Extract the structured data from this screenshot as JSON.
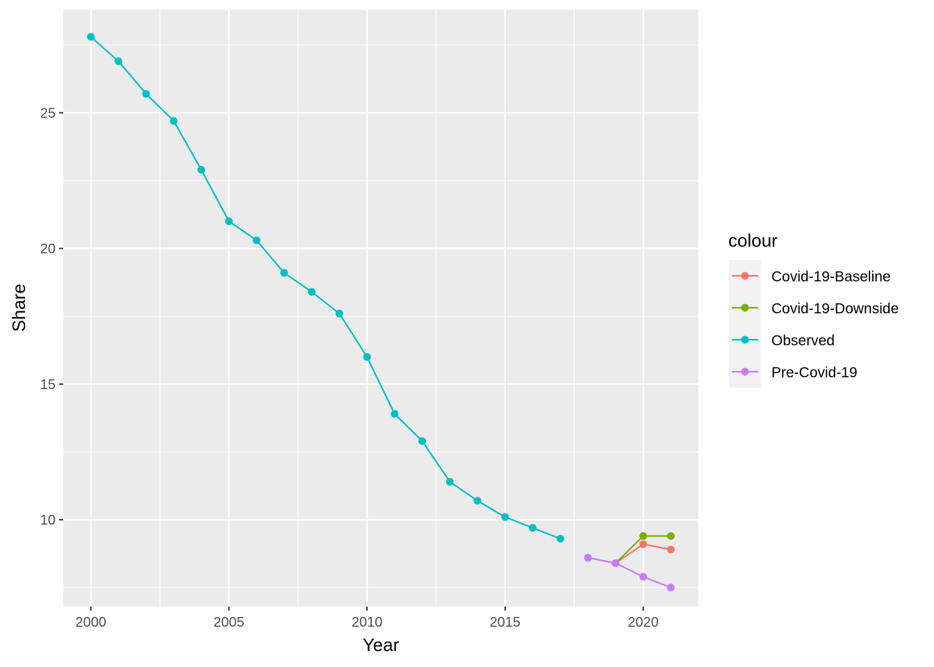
{
  "chart_data": {
    "type": "line",
    "title": "",
    "xlabel": "Year",
    "ylabel": "Share",
    "xlim": [
      1999,
      2022
    ],
    "ylim": [
      6.8,
      28.8
    ],
    "x_ticks": [
      2000,
      2005,
      2010,
      2015,
      2020
    ],
    "y_ticks": [
      10,
      15,
      20,
      25
    ],
    "grid": true,
    "legend": {
      "title": "colour",
      "position": "right"
    },
    "series": [
      {
        "name": "Covid-19-Baseline",
        "color": "#F8766D",
        "x": [
          2018,
          2019,
          2020,
          2021
        ],
        "y": [
          8.6,
          8.4,
          9.1,
          8.9
        ]
      },
      {
        "name": "Covid-19-Downside",
        "color": "#7CAE00",
        "x": [
          2018,
          2019,
          2020,
          2021
        ],
        "y": [
          8.6,
          8.4,
          9.4,
          9.4
        ]
      },
      {
        "name": "Observed",
        "color": "#00BFC4",
        "x": [
          2000,
          2001,
          2002,
          2003,
          2004,
          2005,
          2006,
          2007,
          2008,
          2009,
          2010,
          2011,
          2012,
          2013,
          2014,
          2015,
          2016,
          2017
        ],
        "y": [
          27.8,
          26.9,
          25.7,
          24.7,
          22.9,
          21.0,
          20.3,
          19.1,
          18.4,
          17.6,
          16.0,
          13.9,
          12.9,
          11.4,
          10.7,
          10.1,
          9.7,
          9.3
        ]
      },
      {
        "name": "Pre-Covid-19",
        "color": "#C77CFF",
        "x": [
          2018,
          2019,
          2020,
          2021
        ],
        "y": [
          8.6,
          8.4,
          7.9,
          7.5
        ]
      }
    ]
  }
}
